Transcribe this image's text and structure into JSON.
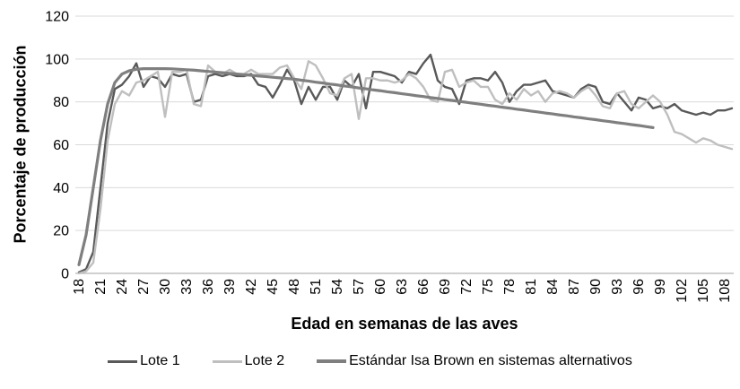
{
  "chart_data": {
    "type": "line",
    "xlabel": "Edad en semanas de las aves",
    "ylabel": "Porcentaje de producción",
    "ylim": [
      0,
      120
    ],
    "y_ticks": [
      0,
      20,
      40,
      60,
      80,
      100,
      120
    ],
    "x_tick_labels": [
      "18",
      "21",
      "24",
      "27",
      "30",
      "33",
      "36",
      "39",
      "42",
      "45",
      "48",
      "51",
      "54",
      "57",
      "60",
      "63",
      "66",
      "69",
      "72",
      "75",
      "78",
      "81",
      "84",
      "87",
      "90",
      "93",
      "96",
      "99",
      "102",
      "105",
      "108"
    ],
    "x_unit": "week",
    "x_start_week": 18,
    "x_label_step": 3,
    "grid": "horizontal",
    "gridline_color": "#d9d9d9",
    "axis_line_color": "#b3b3b3",
    "legend_position": "bottom",
    "series": [
      {
        "name": "Lote 1",
        "color": "#595959",
        "stroke_width": 2.4,
        "start_week": 18,
        "values": [
          0.5,
          2,
          10,
          40,
          70,
          86,
          88,
          92,
          98,
          87,
          92,
          91,
          87,
          93,
          92,
          93,
          80,
          81,
          92,
          93,
          92,
          93,
          92,
          92,
          93,
          88,
          87,
          82,
          88,
          95,
          90,
          79,
          87,
          81,
          87,
          87,
          81,
          90,
          87,
          93,
          77,
          94,
          94,
          93,
          92,
          89,
          94,
          93,
          98,
          102,
          90,
          87,
          86,
          79,
          90,
          91,
          91,
          90,
          94,
          89,
          80,
          85,
          88,
          88,
          89,
          90,
          85,
          84,
          83,
          82,
          86,
          88,
          87,
          80,
          79,
          84,
          80,
          76,
          82,
          81,
          77,
          78,
          77,
          79,
          76,
          75,
          74,
          75,
          74,
          76,
          76,
          77
        ]
      },
      {
        "name": "Lote 2",
        "color": "#bfbfbf",
        "stroke_width": 2.4,
        "start_week": 18,
        "values": [
          0,
          1,
          5,
          30,
          62,
          79,
          85,
          83,
          89,
          90,
          92,
          94,
          73,
          94,
          94,
          95,
          79,
          78,
          97,
          94,
          93,
          95,
          93,
          93,
          95,
          93,
          93,
          93,
          96,
          97,
          91,
          86,
          99,
          97,
          91,
          84,
          83,
          91,
          93,
          72,
          91,
          91,
          90,
          90,
          89,
          90,
          93,
          91,
          87,
          81,
          80,
          94,
          95,
          87,
          89,
          90,
          87,
          87,
          81,
          79,
          84,
          81,
          86,
          83,
          85,
          80,
          84,
          85,
          84,
          82,
          85,
          87,
          83,
          78,
          77,
          84,
          85,
          79,
          77,
          80,
          83,
          80,
          74,
          66,
          65,
          63,
          61,
          63,
          62,
          60,
          59,
          58
        ]
      },
      {
        "name": "Estándar Isa Brown en sistemas alternativos",
        "color": "#7f7f7f",
        "stroke_width": 3.2,
        "start_week": 18,
        "values": [
          4,
          18,
          40,
          62,
          79,
          89,
          93,
          94.5,
          95.2,
          95.5,
          95.5,
          95.5,
          95.5,
          95.4,
          95.2,
          95,
          94.8,
          94.5,
          94.2,
          93.9,
          93.6,
          93.3,
          93,
          92.7,
          92.4,
          92.1,
          91.8,
          91.5,
          91.2,
          90.9,
          90.6,
          90.1,
          89.7,
          89.2,
          88.8,
          88.3,
          87.9,
          87.4,
          87,
          86.5,
          86.1,
          85.6,
          85.2,
          84.7,
          84.3,
          83.8,
          83.4,
          82.9,
          82.5,
          82,
          81.6,
          81.1,
          80.7,
          80.2,
          79.8,
          79.3,
          78.9,
          78.4,
          78,
          77.5,
          77.1,
          76.6,
          76.2,
          75.7,
          75.3,
          74.8,
          74.4,
          73.9,
          73.5,
          73,
          72.6,
          72.1,
          71.7,
          71.2,
          70.8,
          70.3,
          69.9,
          69.4,
          69,
          68.5,
          68
        ]
      }
    ]
  }
}
